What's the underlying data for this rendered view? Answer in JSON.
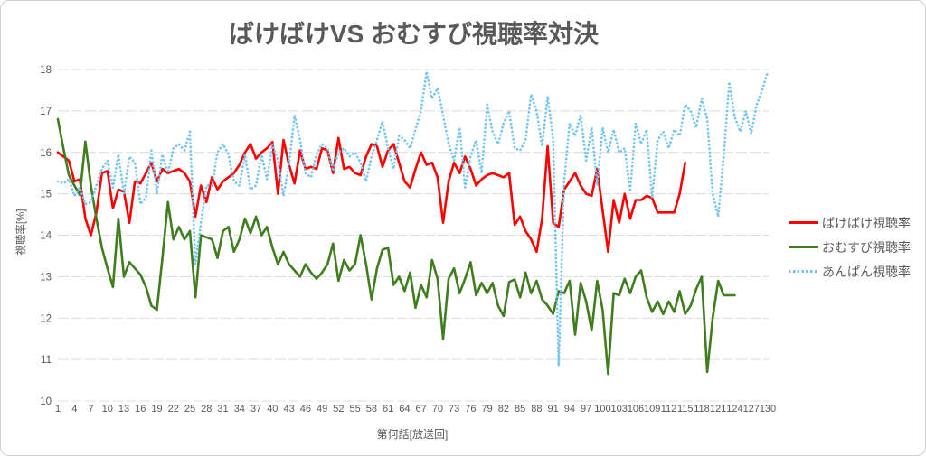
{
  "title": "ばけばけVS おむすび視聴率対決",
  "chart_data": {
    "type": "line",
    "title": "ばけばけVS おむすび視聴率対決",
    "xlabel": "第何話[放送回]",
    "ylabel": "視聴率[%]",
    "xlim": [
      1,
      130
    ],
    "ylim": [
      10,
      18
    ],
    "y_ticks": [
      10,
      11,
      12,
      13,
      14,
      15,
      16,
      17,
      18
    ],
    "x_ticks": [
      1,
      4,
      7,
      10,
      13,
      16,
      19,
      22,
      25,
      28,
      31,
      34,
      37,
      40,
      43,
      46,
      49,
      52,
      55,
      58,
      61,
      64,
      67,
      70,
      73,
      76,
      79,
      82,
      85,
      88,
      91,
      94,
      97,
      100,
      103,
      106,
      109,
      112,
      115,
      118,
      121,
      124,
      127,
      130
    ],
    "grid": "horizontal-dashed",
    "legend_position": "right",
    "colors": {
      "grid": "#dcdcdc",
      "text": "#595959",
      "border": "#d0d0d0"
    },
    "series": [
      {
        "name": "ばけばけ視聴率",
        "color": "#ff0000",
        "style": "solid",
        "x_start": 1,
        "values": [
          16.0,
          15.9,
          15.8,
          15.3,
          15.35,
          14.4,
          14.0,
          14.55,
          15.5,
          15.55,
          14.65,
          15.1,
          15.05,
          14.3,
          15.3,
          15.25,
          15.5,
          15.75,
          15.3,
          15.6,
          15.5,
          15.55,
          15.6,
          15.5,
          15.3,
          14.45,
          15.2,
          14.8,
          15.4,
          15.1,
          15.3,
          15.4,
          15.5,
          15.7,
          16.0,
          16.2,
          15.85,
          16.0,
          16.1,
          16.25,
          15.0,
          16.3,
          15.7,
          15.25,
          16.05,
          15.6,
          15.65,
          15.6,
          16.1,
          16.05,
          15.5,
          16.35,
          15.6,
          15.65,
          15.5,
          15.45,
          15.9,
          16.2,
          16.15,
          15.65,
          16.05,
          16.2,
          15.75,
          15.3,
          15.15,
          15.6,
          16.0,
          15.7,
          15.75,
          15.4,
          14.3,
          15.3,
          15.75,
          15.5,
          15.9,
          15.6,
          15.2,
          15.35,
          15.45,
          15.5,
          15.45,
          15.4,
          15.5,
          14.25,
          14.45,
          14.1,
          13.9,
          13.6,
          14.4,
          16.15,
          14.3,
          14.2,
          15.1,
          15.3,
          15.5,
          15.2,
          15.0,
          14.95,
          15.6,
          14.6,
          13.6,
          14.85,
          14.3,
          15.0,
          14.4,
          14.85,
          14.85,
          14.95,
          14.9,
          14.55,
          14.55,
          14.55,
          14.55,
          15.0,
          15.75
        ]
      },
      {
        "name": "おむすび視聴率",
        "color": "#3f7d1e",
        "style": "solid",
        "x_start": 1,
        "values": [
          16.8,
          16.1,
          15.45,
          15.2,
          14.97,
          16.26,
          15.2,
          14.4,
          13.7,
          13.2,
          12.75,
          14.4,
          13.0,
          13.35,
          13.2,
          13.05,
          12.75,
          12.3,
          12.2,
          13.45,
          14.8,
          13.9,
          14.2,
          13.9,
          14.1,
          12.5,
          14.0,
          13.95,
          13.9,
          13.45,
          14.1,
          14.2,
          13.6,
          13.9,
          14.4,
          14.05,
          14.45,
          14.0,
          14.2,
          13.7,
          13.3,
          13.6,
          13.3,
          13.15,
          13.0,
          13.3,
          13.1,
          12.95,
          13.1,
          13.3,
          13.8,
          12.9,
          13.4,
          13.15,
          13.3,
          14.0,
          13.3,
          12.45,
          13.2,
          13.65,
          13.7,
          12.8,
          13.0,
          12.65,
          13.1,
          12.25,
          12.8,
          12.5,
          13.4,
          12.95,
          11.5,
          12.95,
          13.2,
          12.6,
          12.95,
          13.35,
          12.55,
          12.85,
          12.6,
          12.85,
          12.3,
          12.05,
          12.87,
          12.93,
          12.5,
          13.1,
          12.6,
          12.9,
          12.45,
          12.3,
          12.1,
          12.65,
          12.6,
          12.9,
          11.6,
          12.85,
          12.4,
          11.7,
          12.9,
          12.2,
          10.65,
          12.6,
          12.55,
          12.95,
          12.6,
          13.0,
          13.15,
          12.5,
          12.15,
          12.4,
          12.1,
          12.4,
          12.15,
          12.65,
          12.1,
          12.3,
          12.7,
          13.0,
          10.7,
          12.0,
          12.9,
          12.55,
          12.55,
          12.55
        ]
      },
      {
        "name": "あんぱん視聴率",
        "color": "#74c5f0",
        "style": "dotted",
        "x_start": 1,
        "values": [
          15.3,
          15.25,
          15.35,
          14.95,
          15.15,
          14.75,
          14.8,
          15.2,
          15.6,
          15.8,
          15.15,
          15.95,
          15.0,
          15.9,
          15.75,
          14.75,
          14.9,
          16.05,
          15.0,
          15.95,
          15.5,
          16.1,
          16.2,
          16.05,
          16.5,
          13.3,
          14.3,
          15.2,
          15.2,
          16.0,
          16.2,
          15.95,
          15.3,
          15.2,
          15.95,
          15.1,
          15.2,
          15.95,
          15.35,
          16.2,
          15.8,
          14.95,
          15.7,
          16.9,
          16.3,
          15.5,
          15.4,
          15.95,
          16.2,
          16.1,
          15.55,
          16.0,
          16.1,
          15.9,
          16.0,
          15.75,
          15.3,
          15.9,
          16.3,
          16.75,
          16.1,
          15.6,
          16.4,
          16.3,
          16.1,
          16.55,
          17.0,
          17.95,
          17.3,
          17.55,
          16.9,
          16.2,
          15.8,
          16.6,
          15.15,
          15.9,
          16.3,
          15.5,
          17.15,
          16.5,
          16.2,
          16.7,
          17.0,
          16.1,
          16.05,
          16.3,
          17.4,
          17.0,
          16.15,
          17.35,
          16.3,
          10.85,
          15.3,
          16.7,
          16.4,
          16.9,
          15.8,
          16.6,
          15.2,
          16.6,
          16.0,
          16.55,
          16.0,
          16.1,
          15.05,
          16.7,
          16.2,
          16.55,
          14.9,
          16.3,
          16.5,
          16.1,
          16.55,
          16.4,
          17.15,
          17.0,
          16.6,
          17.3,
          16.8,
          15.0,
          14.45,
          15.9,
          17.7,
          16.85,
          16.5,
          17.0,
          16.45,
          17.15,
          17.5,
          17.95
        ]
      }
    ]
  }
}
